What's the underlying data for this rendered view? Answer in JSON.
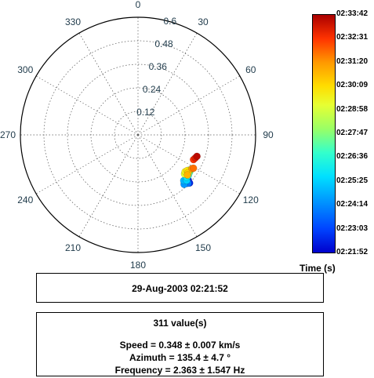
{
  "chart_data": {
    "type": "scatter",
    "projection": "polar",
    "angular_ticks": [
      "0",
      "30",
      "60",
      "90",
      "120",
      "150",
      "180",
      "210",
      "240",
      "270",
      "300",
      "330"
    ],
    "radial_ticks": [
      0.12,
      0.24,
      0.36,
      0.48,
      0.6
    ],
    "rlim": [
      0,
      0.6
    ],
    "grid": true,
    "points": [
      {
        "azimuth": 132,
        "r": 0.345,
        "t": 0.02
      },
      {
        "azimuth": 133,
        "r": 0.36,
        "t": 0.05
      },
      {
        "azimuth": 135,
        "r": 0.35,
        "t": 0.08
      },
      {
        "azimuth": 136,
        "r": 0.34,
        "t": 0.12
      },
      {
        "azimuth": 134,
        "r": 0.355,
        "t": 0.16
      },
      {
        "azimuth": 137,
        "r": 0.345,
        "t": 0.2
      },
      {
        "azimuth": 135,
        "r": 0.33,
        "t": 0.24
      },
      {
        "azimuth": 133,
        "r": 0.34,
        "t": 0.28
      },
      {
        "azimuth": 131,
        "r": 0.33,
        "t": 0.32
      },
      {
        "azimuth": 129,
        "r": 0.33,
        "t": 0.36
      },
      {
        "azimuth": 127,
        "r": 0.32,
        "t": 0.4
      },
      {
        "azimuth": 126,
        "r": 0.325,
        "t": 0.44
      },
      {
        "azimuth": 125,
        "r": 0.315,
        "t": 0.48
      },
      {
        "azimuth": 124,
        "r": 0.32,
        "t": 0.52
      },
      {
        "azimuth": 128,
        "r": 0.315,
        "t": 0.56
      },
      {
        "azimuth": 130,
        "r": 0.31,
        "t": 0.6
      },
      {
        "azimuth": 128,
        "r": 0.305,
        "t": 0.64
      },
      {
        "azimuth": 126,
        "r": 0.31,
        "t": 0.68
      },
      {
        "azimuth": 127,
        "r": 0.32,
        "t": 0.72
      },
      {
        "azimuth": 129,
        "r": 0.325,
        "t": 0.76
      },
      {
        "azimuth": 122,
        "r": 0.325,
        "t": 0.8
      },
      {
        "azimuth": 121,
        "r": 0.33,
        "t": 0.84
      },
      {
        "azimuth": 114,
        "r": 0.31,
        "t": 0.9
      },
      {
        "azimuth": 112,
        "r": 0.315,
        "t": 0.94
      },
      {
        "azimuth": 110,
        "r": 0.32,
        "t": 0.98
      }
    ]
  },
  "colorbar": {
    "ticks": [
      "02:33:42",
      "02:32:31",
      "02:31:20",
      "02:30:09",
      "02:28:58",
      "02:27:47",
      "02:26:36",
      "02:25:25",
      "02:24:14",
      "02:23:03",
      "02:21:52"
    ],
    "label": "Time (s)",
    "colors": [
      "#0000cc",
      "#0044ff",
      "#0099ff",
      "#00e0ff",
      "#33ffcc",
      "#99ff66",
      "#e6ff33",
      "#ffdd00",
      "#ff9900",
      "#ff3300",
      "#aa0000"
    ]
  },
  "info": {
    "date": "29-Aug-2003 02:21:52",
    "count": "311 value(s)",
    "speed": "Speed = 0.348 ± 0.007 km/s",
    "azimuth": "Azimuth = 135.4 ± 4.7 °",
    "frequency": "Frequency = 2.363 ± 1.547 Hz"
  }
}
